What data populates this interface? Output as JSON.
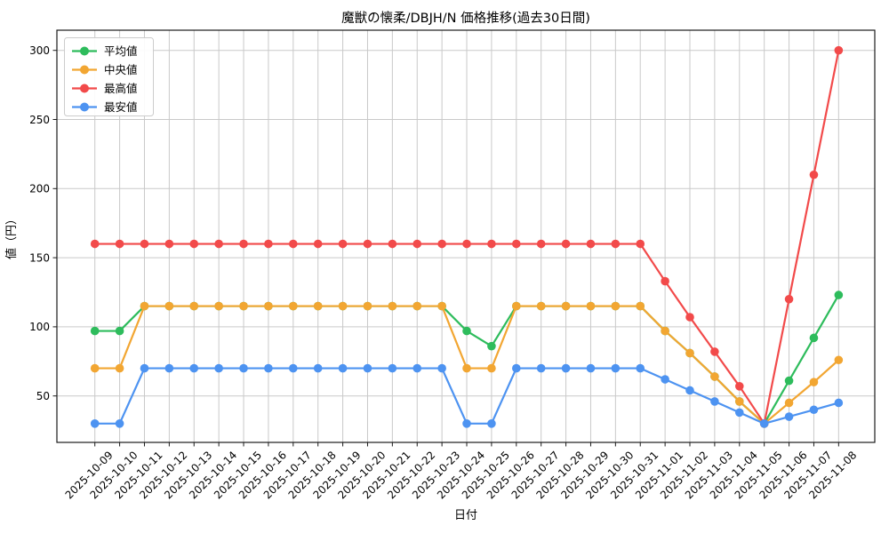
{
  "chart_data": {
    "type": "line",
    "title": "魔獣の懐柔/DBJH/N 価格推移(過去30日間)",
    "xlabel": "日付",
    "ylabel": "値（円）",
    "x": [
      "2025-10-09",
      "2025-10-10",
      "2025-10-11",
      "2025-10-12",
      "2025-10-13",
      "2025-10-14",
      "2025-10-15",
      "2025-10-16",
      "2025-10-17",
      "2025-10-18",
      "2025-10-19",
      "2025-10-20",
      "2025-10-21",
      "2025-10-22",
      "2025-10-23",
      "2025-10-24",
      "2025-10-25",
      "2025-10-26",
      "2025-10-27",
      "2025-10-28",
      "2025-10-29",
      "2025-10-30",
      "2025-10-31",
      "2025-11-01",
      "2025-11-02",
      "2025-11-03",
      "2025-11-04",
      "2025-11-05",
      "2025-11-06",
      "2025-11-07",
      "2025-11-08"
    ],
    "series": [
      {
        "key": "average",
        "name": "平均値",
        "color": "#2ebc5c",
        "values": [
          97,
          97,
          115,
          115,
          115,
          115,
          115,
          115,
          115,
          115,
          115,
          115,
          115,
          115,
          115,
          97,
          86,
          115,
          115,
          115,
          115,
          115,
          115,
          97,
          81,
          64,
          46,
          30,
          61,
          92,
          123
        ]
      },
      {
        "key": "median",
        "name": "中央値",
        "color": "#f2a632",
        "values": [
          70,
          70,
          115,
          115,
          115,
          115,
          115,
          115,
          115,
          115,
          115,
          115,
          115,
          115,
          115,
          70,
          70,
          115,
          115,
          115,
          115,
          115,
          115,
          97,
          81,
          64,
          46,
          30,
          45,
          60,
          76
        ]
      },
      {
        "key": "max",
        "name": "最高値",
        "color": "#f24a4a",
        "values": [
          160,
          160,
          160,
          160,
          160,
          160,
          160,
          160,
          160,
          160,
          160,
          160,
          160,
          160,
          160,
          160,
          160,
          160,
          160,
          160,
          160,
          160,
          160,
          133,
          107,
          82,
          57,
          30,
          120,
          210,
          300
        ]
      },
      {
        "key": "min",
        "name": "最安値",
        "color": "#4d93f1",
        "values": [
          30,
          30,
          70,
          70,
          70,
          70,
          70,
          70,
          70,
          70,
          70,
          70,
          70,
          70,
          70,
          30,
          30,
          70,
          70,
          70,
          70,
          70,
          70,
          62,
          54,
          46,
          38,
          30,
          35,
          40,
          45
        ]
      }
    ],
    "yticks": [
      50,
      100,
      150,
      200,
      250,
      300
    ],
    "ylim": [
      16.3,
      314.6
    ],
    "grid": true,
    "legend_position": "upper left",
    "grid_color": "#c9c9c9",
    "spine_color": "#1a1a1a",
    "legend_border_color": "#cccccc"
  }
}
